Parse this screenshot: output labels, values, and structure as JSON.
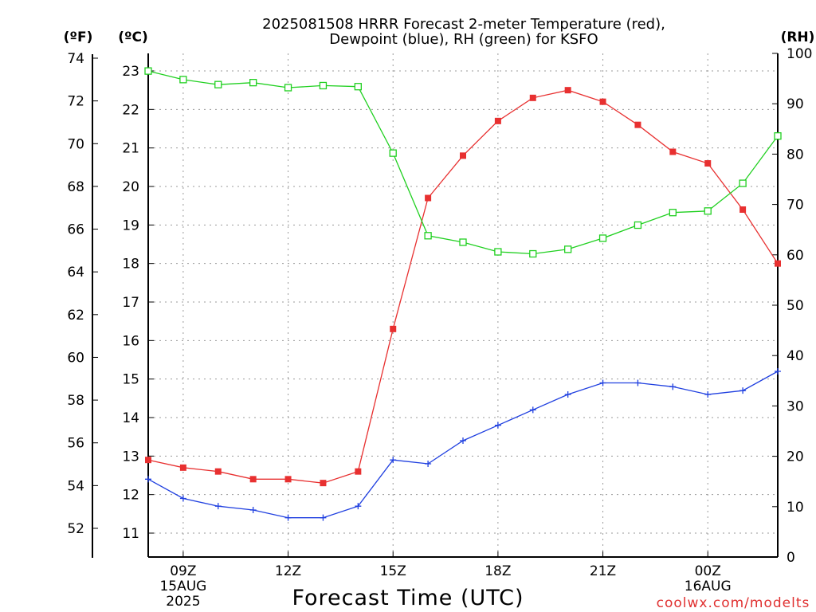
{
  "chart_data": {
    "type": "line",
    "title_lines": [
      "2025081508 HRRR Forecast 2-meter Temperature (red),",
      "Dewpoint (blue), RH (green) for KSFO"
    ],
    "xlabel": "Forecast Time (UTC)",
    "credit": "coolwx.com/modelts",
    "left_axis_f": {
      "unit": "(ºF)",
      "ticks": [
        "52",
        "54",
        "56",
        "58",
        "60",
        "62",
        "64",
        "66",
        "68",
        "70",
        "72",
        "74"
      ]
    },
    "left_axis_c": {
      "unit": "(ºC)",
      "range": [
        10.4,
        23.4
      ],
      "ticks": [
        "11",
        "12",
        "13",
        "14",
        "15",
        "16",
        "17",
        "18",
        "19",
        "20",
        "21",
        "22",
        "23"
      ]
    },
    "right_axis_rh": {
      "unit": "(RH)",
      "range": [
        0,
        100
      ],
      "ticks": [
        "0",
        "10",
        "20",
        "30",
        "40",
        "50",
        "60",
        "70",
        "80",
        "90",
        "100"
      ]
    },
    "x_range_hours": [
      8,
      26
    ],
    "x_ticks": [
      {
        "hour": 9,
        "lines": [
          "09Z",
          "15AUG",
          "2025"
        ]
      },
      {
        "hour": 12,
        "lines": [
          "12Z"
        ]
      },
      {
        "hour": 15,
        "lines": [
          "15Z"
        ]
      },
      {
        "hour": 18,
        "lines": [
          "18Z"
        ]
      },
      {
        "hour": 21,
        "lines": [
          "21Z"
        ]
      },
      {
        "hour": 24,
        "lines": [
          "00Z",
          "16AUG"
        ]
      }
    ],
    "grid": true,
    "x": [
      8,
      9,
      10,
      11,
      12,
      13,
      14,
      15,
      16,
      17,
      18,
      19,
      20,
      21,
      22,
      23,
      24,
      25,
      26
    ],
    "series": [
      {
        "name": "Temperature",
        "axis": "celsius",
        "color": "#e83030",
        "marker": "filled-square",
        "values": [
          12.9,
          12.7,
          12.6,
          12.4,
          12.4,
          12.3,
          12.6,
          16.3,
          19.7,
          20.8,
          21.7,
          22.3,
          22.5,
          22.2,
          21.6,
          20.9,
          20.6,
          19.4,
          18.0
        ]
      },
      {
        "name": "Dewpoint",
        "axis": "celsius",
        "color": "#2040e0",
        "marker": "plus",
        "values": [
          12.4,
          11.9,
          11.7,
          11.6,
          11.4,
          11.4,
          11.7,
          12.9,
          12.8,
          13.4,
          13.8,
          14.2,
          14.6,
          14.9,
          14.9,
          14.8,
          14.6,
          14.7,
          15.2
        ]
      },
      {
        "name": "RH",
        "axis": "rh",
        "color": "#20d020",
        "marker": "open-square",
        "values": [
          96.5,
          94.8,
          93.8,
          94.2,
          93.2,
          93.6,
          93.4,
          80.2,
          63.8,
          62.5,
          60.6,
          60.2,
          61.1,
          63.3,
          65.9,
          68.4,
          68.7,
          74.2,
          83.6
        ]
      }
    ]
  }
}
